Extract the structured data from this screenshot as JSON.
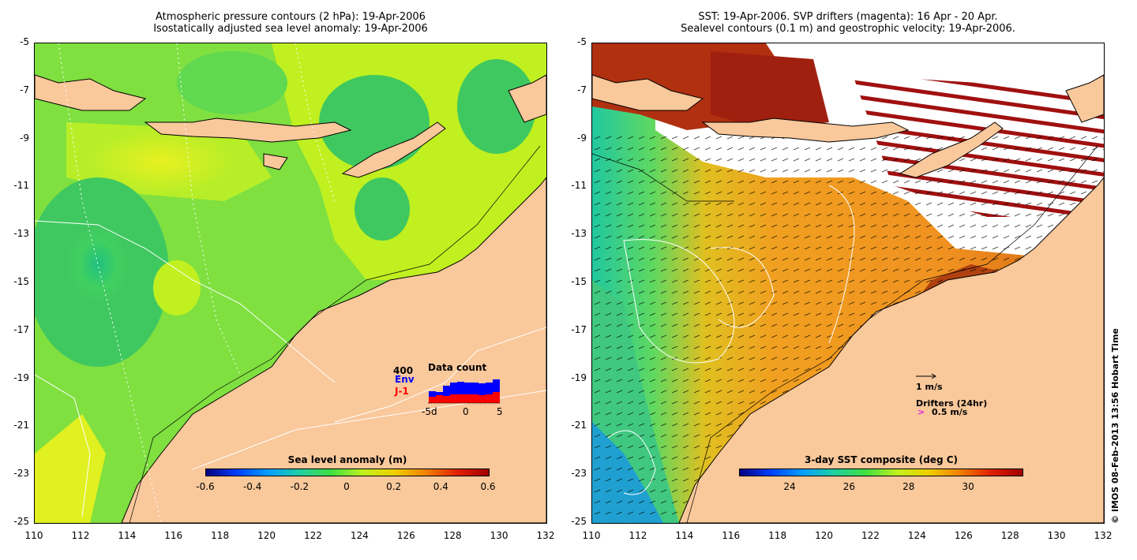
{
  "left_panel": {
    "title_line1": "Atmospheric pressure contours (2 hPa): 19-Apr-2006",
    "title_line2": "Isostatically adjusted sea level anomaly: 19-Apr-2006",
    "colorbar_label": "Sea level anomaly (m)",
    "colorbar_ticks": [
      "-0.6",
      "-0.4",
      "-0.2",
      "0",
      "0.2",
      "0.4",
      "0.6"
    ],
    "inset": {
      "title": "Data count",
      "ymax_label": "400",
      "series": [
        {
          "name": "Env",
          "color": "#0000ff",
          "values": [
            150,
            140,
            220,
            260,
            270,
            260,
            260,
            250,
            260,
            300
          ]
        },
        {
          "name": "J-1",
          "color": "#ff0000",
          "values": [
            80,
            100,
            90,
            110,
            110,
            110,
            110,
            100,
            110,
            140
          ]
        }
      ],
      "x_ticks": [
        "-5d",
        "0",
        "5"
      ]
    }
  },
  "right_panel": {
    "title_line1": "SST: 19-Apr-2006. SVP drifters (magenta): 16 Apr - 20 Apr.",
    "title_line2": "Sealevel contours (0.1 m) and geostrophic velocity: 19-Apr-2006.",
    "colorbar_label": "3-day SST composite (deg C)",
    "colorbar_ticks": [
      "24",
      "26",
      "28",
      "30"
    ],
    "scale_arrow_label": "1 m/s",
    "drifters_label": "Drifters (24hr)",
    "drifters_speed": "0.5 m/s",
    "drifter_symbol": ">"
  },
  "axes": {
    "y_ticks": [
      "-5",
      "-7",
      "-9",
      "-11",
      "-13",
      "-15",
      "-17",
      "-19",
      "-21",
      "-23",
      "-25"
    ],
    "x_ticks": [
      "110",
      "112",
      "114",
      "116",
      "118",
      "120",
      "122",
      "124",
      "126",
      "128",
      "130",
      "132"
    ]
  },
  "credit": "© IMOS 08-Feb-2013 13:56 Hobart Time",
  "colors": {
    "land": "#f9c89b",
    "coast": "#000000",
    "ocean_green": "#7fe040",
    "ocean_yellow": "#c8f020",
    "sst_orange": "#f0a020",
    "sst_red": "#a83010",
    "cloud_white": "#ffffff"
  }
}
